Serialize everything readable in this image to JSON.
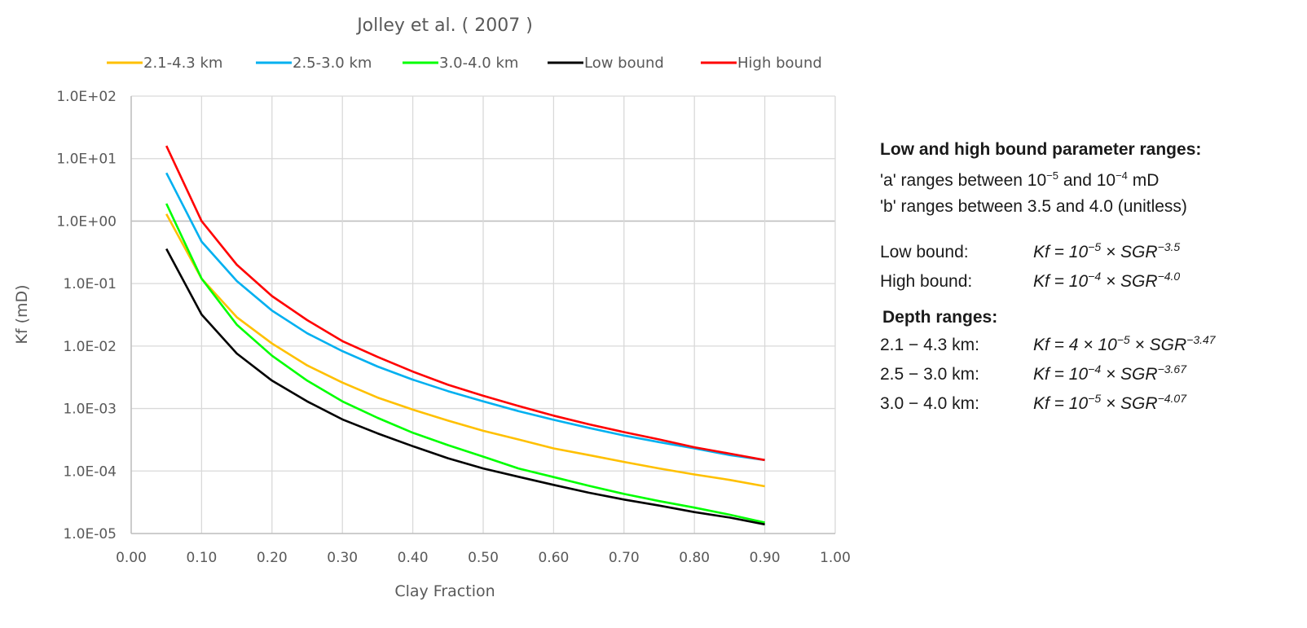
{
  "chart_data": {
    "type": "line",
    "title": "Jolley et al. ( 2007 )",
    "xlabel": "Clay Fraction",
    "ylabel": "Kf (mD)",
    "xscale": "linear",
    "yscale": "log",
    "xlim": [
      0.0,
      1.0
    ],
    "ylim": [
      1e-05,
      100
    ],
    "grid": true,
    "legend_position": "top",
    "x_ticks": [
      "0.00",
      "0.10",
      "0.20",
      "0.30",
      "0.40",
      "0.50",
      "0.60",
      "0.70",
      "0.80",
      "0.90",
      "1.00"
    ],
    "x_tick_values": [
      0,
      0.1,
      0.2,
      0.3,
      0.4,
      0.5,
      0.6,
      0.7,
      0.8,
      0.9,
      1.0
    ],
    "y_ticks": [
      "1.0E+02",
      "1.0E+01",
      "1.0E+00",
      "1.0E-01",
      "1.0E-02",
      "1.0E-03",
      "1.0E-04",
      "1.0E-05"
    ],
    "y_tick_values": [
      100,
      10,
      1,
      0.1,
      0.01,
      0.001,
      0.0001,
      1e-05
    ],
    "x": [
      0.05,
      0.1,
      0.15,
      0.2,
      0.25,
      0.3,
      0.35,
      0.4,
      0.45,
      0.5,
      0.55,
      0.6,
      0.65,
      0.7,
      0.75,
      0.8,
      0.85,
      0.9
    ],
    "series": [
      {
        "name": "2.1-4.3 km",
        "color": "#FFC000",
        "values": [
          1.3,
          0.12,
          0.029,
          0.011,
          0.0049,
          0.0026,
          0.0015,
          0.00096,
          0.00064,
          0.00044,
          0.00032,
          0.00023,
          0.00018,
          0.00014,
          0.00011,
          8.8e-05,
          7.2e-05,
          5.7e-05
        ]
      },
      {
        "name": "2.5-3.0 km",
        "color": "#00B0F0",
        "values": [
          5.9,
          0.47,
          0.11,
          0.037,
          0.016,
          0.0083,
          0.0047,
          0.0029,
          0.0019,
          0.0013,
          0.00091,
          0.00066,
          0.00049,
          0.00037,
          0.00029,
          0.00023,
          0.00018,
          0.00015
        ]
      },
      {
        "name": "3.0-4.0 km",
        "color": "#00FF00",
        "values": [
          1.9,
          0.12,
          0.022,
          0.007,
          0.0028,
          0.0013,
          0.00071,
          0.00041,
          0.00026,
          0.00017,
          0.00011,
          8e-05,
          5.8e-05,
          4.3e-05,
          3.3e-05,
          2.6e-05,
          2e-05,
          1.5e-05
        ]
      },
      {
        "name": "Low bound",
        "color": "#000000",
        "values": [
          0.36,
          0.032,
          0.0076,
          0.0028,
          0.0013,
          0.00067,
          0.0004,
          0.00025,
          0.00016,
          0.00011,
          8.1e-05,
          6e-05,
          4.5e-05,
          3.5e-05,
          2.8e-05,
          2.2e-05,
          1.8e-05,
          1.4e-05
        ]
      },
      {
        "name": "High bound",
        "color": "#FF0000",
        "values": [
          16,
          1.0,
          0.2,
          0.063,
          0.026,
          0.012,
          0.0067,
          0.0039,
          0.0024,
          0.0016,
          0.0011,
          0.00077,
          0.00056,
          0.00042,
          0.00032,
          0.00024,
          0.00019,
          0.00015
        ]
      }
    ]
  },
  "side_panel": {
    "heading_params": "Low and high bound parameter ranges:",
    "a_range": {
      "pre": "'a' ranges between 10",
      "exp1": "−5",
      "mid": " and 10",
      "exp2": "−4",
      "post": " mD"
    },
    "b_range": "'b' ranges between 3.5 and 4.0 (unitless)",
    "bounds": [
      {
        "label": "Low bound:",
        "coef": "Kf  = 10",
        "coef_exp": "−5",
        "times": " × SGR",
        "exp": "−3.5"
      },
      {
        "label": "High bound:",
        "coef": "Kf  = 10",
        "coef_exp": "−4",
        "times": " × SGR",
        "exp": "−4.0"
      }
    ],
    "heading_depth": "Depth ranges:",
    "depths": [
      {
        "label": "2.1 − 4.3 km:",
        "coef": "Kf  = 4 × 10",
        "coef_exp": "−5",
        "times": " × SGR",
        "exp": "−3.47"
      },
      {
        "label": "2.5 − 3.0 km:",
        "coef": "Kf  = 10",
        "coef_exp": "−4",
        "times": " × SGR",
        "exp": "−3.67"
      },
      {
        "label": "3.0 − 4.0 km:",
        "coef": "Kf  = 10",
        "coef_exp": "−5",
        "times": " × SGR",
        "exp": "−4.07"
      }
    ]
  }
}
